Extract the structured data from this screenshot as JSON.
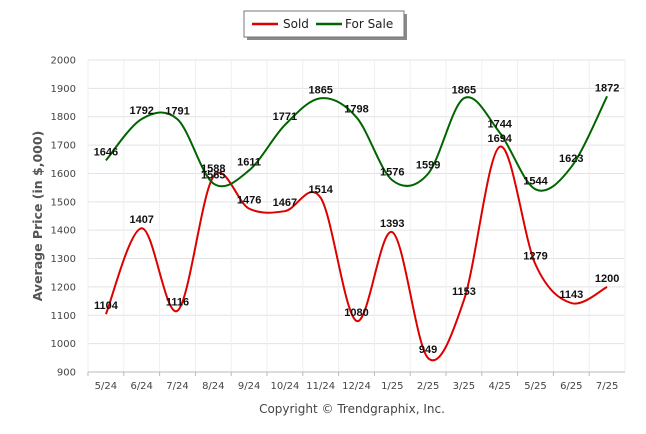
{
  "chart_data": {
    "type": "line",
    "categories": [
      "5/24",
      "6/24",
      "7/24",
      "8/24",
      "9/24",
      "10/24",
      "11/24",
      "12/24",
      "1/25",
      "2/25",
      "3/25",
      "4/25",
      "5/25",
      "6/25",
      "7/25"
    ],
    "series": [
      {
        "name": "Sold",
        "color": "#dd0000",
        "values": [
          1104,
          1407,
          1116,
          1588,
          1476,
          1467,
          1514,
          1080,
          1393,
          949,
          1153,
          1694,
          1279,
          1143,
          1200
        ]
      },
      {
        "name": "For Sale",
        "color": "#006400",
        "values": [
          1646,
          1792,
          1791,
          1565,
          1611,
          1771,
          1865,
          1798,
          1576,
          1599,
          1865,
          1744,
          1544,
          1623,
          1872
        ]
      }
    ],
    "ylabel": "Average Price (in $,000)",
    "ylim": [
      900,
      2000
    ],
    "yticks": [
      900,
      1000,
      1100,
      1200,
      1300,
      1400,
      1500,
      1600,
      1700,
      1800,
      1900,
      2000
    ],
    "grid": true,
    "legend_position": "top-center",
    "footer": "Copyright © Trendgraphix, Inc."
  }
}
